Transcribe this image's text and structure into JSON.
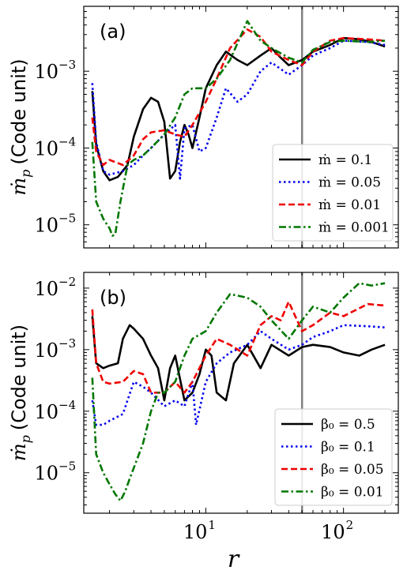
{
  "chart_data": [
    {
      "type": "line",
      "panel_label": "(a)",
      "ylabel_main": "ṁ",
      "ylabel_sub": "p",
      "ylabel_unit": "(Code unit)",
      "xlabel": "",
      "x_scale": "log",
      "y_scale": "log",
      "xlim": [
        1.3,
        250
      ],
      "ylim": [
        5e-06,
        0.007
      ],
      "y_ticks": [
        {
          "base": "10",
          "exp": "−3",
          "value": 0.001
        },
        {
          "base": "10",
          "exp": "−4",
          "value": 0.0001
        },
        {
          "base": "10",
          "exp": "−5",
          "value": 1e-05
        }
      ],
      "x_ticks": [
        {
          "base": "10",
          "exp": "1",
          "value": 10
        },
        {
          "base": "10",
          "exp": "2",
          "value": 100
        }
      ],
      "vline": 50,
      "legend_position": "lower-right",
      "series": [
        {
          "name": "ṁ = 0.1",
          "color": "#000000",
          "dash": "solid",
          "x": [
            1.5,
            1.6,
            1.8,
            2.0,
            2.3,
            2.7,
            3.0,
            3.5,
            4.0,
            4.5,
            5.0,
            5.5,
            6.0,
            6.5,
            7.0,
            7.5,
            8.0,
            9.0,
            10.0,
            12.0,
            14.0,
            17.0,
            20.0,
            25.0,
            30.0,
            35.0,
            40.0,
            50.0,
            60.0,
            80.0,
            100.0,
            130.0,
            160.0,
            200.0
          ],
          "y": [
            0.00055,
            0.00011,
            5e-05,
            3.8e-05,
            4.2e-05,
            6e-05,
            0.00014,
            0.00032,
            0.00045,
            0.0004,
            0.00022,
            4e-05,
            5e-05,
            0.00012,
            0.0002,
            0.00015,
            0.0001,
            0.00025,
            0.0006,
            0.0012,
            0.0018,
            0.0014,
            0.0012,
            0.0016,
            0.002,
            0.0015,
            0.0012,
            0.0014,
            0.0018,
            0.0022,
            0.0027,
            0.0026,
            0.0024,
            0.0021
          ]
        },
        {
          "name": "ṁ = 0.05",
          "color": "#0000ee",
          "dash": "dotted",
          "x": [
            1.5,
            1.6,
            1.8,
            2.0,
            2.5,
            3.0,
            3.5,
            4.0,
            5.0,
            6.0,
            6.5,
            7.0,
            8.0,
            9.0,
            10.0,
            12.0,
            14.0,
            17.0,
            20.0,
            25.0,
            30.0,
            40.0,
            50.0,
            60.0,
            80.0,
            100.0,
            150.0,
            200.0
          ],
          "y": [
            0.0007,
            0.00012,
            5e-05,
            4.5e-05,
            5e-05,
            6e-05,
            8e-05,
            0.0001,
            0.00015,
            0.0002,
            4e-05,
            0.00018,
            0.0002,
            9e-05,
            0.0001,
            0.00025,
            0.0006,
            0.0004,
            0.0005,
            0.001,
            0.0013,
            0.0009,
            0.0012,
            0.0016,
            0.002,
            0.0025,
            0.0024,
            0.0022
          ]
        },
        {
          "name": "ṁ = 0.01",
          "color": "#ee0000",
          "dash": "dashed",
          "x": [
            1.5,
            1.6,
            1.8,
            2.0,
            2.5,
            3.0,
            3.5,
            4.0,
            5.0,
            6.0,
            7.0,
            8.0,
            10.0,
            12.0,
            15.0,
            20.0,
            25.0,
            30.0,
            40.0,
            50.0,
            60.0,
            80.0,
            100.0,
            150.0,
            200.0
          ],
          "y": [
            0.00025,
            9e-05,
            6e-05,
            7e-05,
            6e-05,
            8e-05,
            0.00013,
            0.00016,
            0.00017,
            0.00015,
            0.00014,
            0.0002,
            0.0004,
            0.0008,
            0.002,
            0.0035,
            0.0028,
            0.0018,
            0.0014,
            0.0012,
            0.0018,
            0.0025,
            0.0027,
            0.0026,
            0.0025
          ]
        },
        {
          "name": "ṁ = 0.001",
          "color": "#007700",
          "dash": "dashdot",
          "x": [
            1.5,
            1.6,
            1.8,
            2.0,
            2.1,
            2.2,
            2.4,
            2.7,
            3.0,
            3.5,
            4.0,
            5.0,
            6.0,
            7.0,
            8.0,
            10.0,
            12.0,
            15.0,
            20.0,
            25.0,
            30.0,
            40.0,
            50.0,
            60.0,
            80.0,
            100.0,
            150.0,
            200.0
          ],
          "y": [
            0.00012,
            2e-05,
            1.2e-05,
            9e-06,
            7.2e-06,
            7.5e-06,
            2e-05,
            6e-05,
            7e-05,
            8e-05,
            0.0001,
            0.00015,
            0.00025,
            0.0005,
            0.0006,
            0.0006,
            0.0008,
            0.0014,
            0.0045,
            0.0025,
            0.002,
            0.0015,
            0.0013,
            0.0019,
            0.0024,
            0.0025,
            0.0024,
            0.0025
          ]
        }
      ]
    },
    {
      "type": "line",
      "panel_label": "(b)",
      "ylabel_main": "ṁ",
      "ylabel_sub": "p",
      "ylabel_unit": "(Code unit)",
      "xlabel": "r",
      "x_scale": "log",
      "y_scale": "log",
      "xlim": [
        1.3,
        250
      ],
      "ylim": [
        2.2e-06,
        0.018
      ],
      "y_ticks": [
        {
          "base": "10",
          "exp": "−2",
          "value": 0.01
        },
        {
          "base": "10",
          "exp": "−3",
          "value": 0.001
        },
        {
          "base": "10",
          "exp": "−4",
          "value": 0.0001
        },
        {
          "base": "10",
          "exp": "−5",
          "value": 1e-05
        }
      ],
      "x_ticks": [
        {
          "base": "10",
          "exp": "1",
          "value": 10
        },
        {
          "base": "10",
          "exp": "2",
          "value": 100
        }
      ],
      "vline": 50,
      "legend_position": "lower-right",
      "series": [
        {
          "name": "β₀ = 0.5",
          "color": "#000000",
          "dash": "solid",
          "x": [
            1.5,
            1.6,
            1.8,
            2.0,
            2.3,
            2.5,
            2.8,
            3.0,
            3.5,
            4.0,
            4.5,
            5.0,
            5.5,
            6.0,
            7.0,
            8.0,
            9.0,
            10.0,
            11.0,
            12.0,
            14.0,
            16.0,
            20.0,
            25.0,
            30.0,
            40.0,
            50.0,
            60.0,
            80.0,
            100.0,
            130.0,
            160.0,
            200.0
          ],
          "y": [
            0.0035,
            0.0006,
            0.0005,
            0.00055,
            0.0006,
            0.0015,
            0.0025,
            0.0022,
            0.0015,
            0.0008,
            0.0005,
            0.00015,
            0.0005,
            0.0008,
            0.00015,
            0.0002,
            0.0004,
            0.001,
            0.0008,
            0.0002,
            0.00015,
            0.0006,
            0.0012,
            0.0005,
            0.0012,
            0.0008,
            0.0011,
            0.0012,
            0.0011,
            0.0009,
            0.0008,
            0.001,
            0.0012
          ]
        },
        {
          "name": "β₀ = 0.1",
          "color": "#0000ee",
          "dash": "dotted",
          "x": [
            1.5,
            1.6,
            1.8,
            2.0,
            2.5,
            3.0,
            3.5,
            4.0,
            5.0,
            6.0,
            7.0,
            8.0,
            8.5,
            10.0,
            12.0,
            15.0,
            20.0,
            25.0,
            30.0,
            40.0,
            50.0,
            60.0,
            80.0,
            100.0,
            150.0,
            200.0
          ],
          "y": [
            0.00015,
            6e-05,
            6e-05,
            7e-05,
            9e-05,
            0.0003,
            0.00025,
            0.0002,
            0.00012,
            0.00015,
            0.00012,
            0.0003,
            6e-05,
            0.0003,
            0.0006,
            0.0009,
            0.0012,
            0.002,
            0.0015,
            0.001,
            0.0012,
            0.0016,
            0.002,
            0.0025,
            0.0024,
            0.0023
          ]
        },
        {
          "name": "β₀ = 0.05",
          "color": "#ee0000",
          "dash": "dashed",
          "x": [
            1.5,
            1.6,
            1.8,
            2.0,
            2.5,
            3.0,
            3.5,
            4.0,
            5.0,
            6.0,
            7.0,
            8.0,
            10.0,
            12.0,
            15.0,
            20.0,
            25.0,
            30.0,
            35.0,
            40.0,
            50.0,
            60.0,
            80.0,
            100.0,
            150.0,
            200.0
          ],
          "y": [
            0.0045,
            0.0006,
            0.0003,
            0.00028,
            0.0003,
            0.00045,
            0.0004,
            0.0002,
            0.0002,
            0.0003,
            0.0002,
            0.0003,
            0.0008,
            0.0015,
            0.0012,
            0.0008,
            0.0025,
            0.0035,
            0.003,
            0.006,
            0.002,
            0.0025,
            0.004,
            0.0035,
            0.0055,
            0.0052
          ]
        },
        {
          "name": "β₀ = 0.01",
          "color": "#007700",
          "dash": "dashdot",
          "x": [
            1.5,
            1.6,
            1.8,
            2.0,
            2.2,
            2.4,
            2.6,
            2.8,
            3.0,
            3.5,
            4.0,
            4.5,
            5.0,
            6.0,
            7.0,
            8.0,
            10.0,
            12.0,
            15.0,
            20.0,
            25.0,
            30.0,
            40.0,
            50.0,
            60.0,
            80.0,
            100.0,
            130.0,
            160.0,
            200.0
          ],
          "y": [
            0.00035,
            2e-05,
            1e-05,
            6.5e-06,
            4.5e-06,
            3.5e-06,
            5e-06,
            8e-06,
            1.2e-05,
            3e-05,
            0.0001,
            0.0002,
            0.0002,
            0.0003,
            0.0008,
            0.0015,
            0.002,
            0.004,
            0.008,
            0.007,
            0.005,
            0.003,
            0.0015,
            0.003,
            0.005,
            0.004,
            0.007,
            0.012,
            0.011,
            0.012
          ]
        }
      ]
    }
  ]
}
